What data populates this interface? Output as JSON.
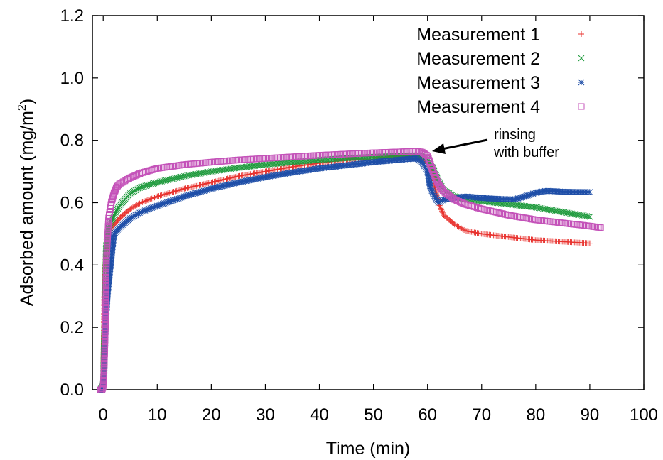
{
  "chart_data": {
    "type": "scatter",
    "xlabel": "Time (min)",
    "ylabel": "Adsorbed amount (mg/m",
    "ylabel_sup": "2",
    "ylabel_close": ")",
    "xlim": [
      -2,
      100
    ],
    "ylim": [
      0.0,
      1.2
    ],
    "x_ticks": [
      "0",
      "10",
      "20",
      "30",
      "40",
      "50",
      "60",
      "70",
      "80",
      "90",
      "100"
    ],
    "y_ticks": [
      "0.0",
      "0.2",
      "0.4",
      "0.6",
      "0.8",
      "1.0",
      "1.2"
    ],
    "grid": false,
    "legend_position": "top-right",
    "annotation": {
      "lines": [
        "rinsing",
        "with buffer"
      ],
      "points_to": [
        60,
        0.77
      ]
    },
    "series": [
      {
        "name": "Measurement 1",
        "marker": "plus",
        "color": "#e8322e",
        "points": [
          [
            -0.5,
            0.0
          ],
          [
            -0.2,
            0.0
          ],
          [
            0.0,
            0.02
          ],
          [
            0.1,
            0.15
          ],
          [
            0.2,
            0.3
          ],
          [
            0.3,
            0.38
          ],
          [
            0.5,
            0.43
          ],
          [
            0.8,
            0.48
          ],
          [
            1,
            0.5
          ],
          [
            1.5,
            0.52
          ],
          [
            2,
            0.53
          ],
          [
            3,
            0.55
          ],
          [
            5,
            0.58
          ],
          [
            7,
            0.6
          ],
          [
            10,
            0.62
          ],
          [
            15,
            0.645
          ],
          [
            20,
            0.665
          ],
          [
            25,
            0.685
          ],
          [
            30,
            0.7
          ],
          [
            35,
            0.715
          ],
          [
            40,
            0.727
          ],
          [
            45,
            0.737
          ],
          [
            50,
            0.745
          ],
          [
            55,
            0.75
          ],
          [
            58,
            0.752
          ],
          [
            59,
            0.745
          ],
          [
            60,
            0.73
          ],
          [
            61,
            0.68
          ],
          [
            62,
            0.6
          ],
          [
            63,
            0.56
          ],
          [
            65,
            0.53
          ],
          [
            67,
            0.51
          ],
          [
            70,
            0.5
          ],
          [
            75,
            0.49
          ],
          [
            80,
            0.48
          ],
          [
            85,
            0.475
          ],
          [
            90,
            0.47
          ]
        ]
      },
      {
        "name": "Measurement 2",
        "marker": "cross",
        "color": "#1e9a3c",
        "points": [
          [
            -0.5,
            0.0
          ],
          [
            -0.2,
            0.01
          ],
          [
            0.0,
            0.02
          ],
          [
            0.1,
            0.12
          ],
          [
            0.3,
            0.25
          ],
          [
            0.5,
            0.45
          ],
          [
            0.8,
            0.5
          ],
          [
            1,
            0.52
          ],
          [
            2,
            0.56
          ],
          [
            3,
            0.59
          ],
          [
            5,
            0.63
          ],
          [
            7,
            0.65
          ],
          [
            10,
            0.665
          ],
          [
            15,
            0.685
          ],
          [
            20,
            0.7
          ],
          [
            25,
            0.712
          ],
          [
            30,
            0.722
          ],
          [
            35,
            0.73
          ],
          [
            40,
            0.737
          ],
          [
            45,
            0.743
          ],
          [
            50,
            0.747
          ],
          [
            55,
            0.75
          ],
          [
            58,
            0.752
          ],
          [
            59,
            0.748
          ],
          [
            60,
            0.74
          ],
          [
            61,
            0.71
          ],
          [
            62,
            0.67
          ],
          [
            63,
            0.64
          ],
          [
            65,
            0.62
          ],
          [
            67,
            0.61
          ],
          [
            70,
            0.605
          ],
          [
            75,
            0.595
          ],
          [
            80,
            0.585
          ],
          [
            85,
            0.57
          ],
          [
            90,
            0.555
          ]
        ]
      },
      {
        "name": "Measurement 3",
        "marker": "star",
        "color": "#1f4fa8",
        "points": [
          [
            -0.5,
            0.0
          ],
          [
            -0.2,
            0.0
          ],
          [
            0.0,
            0.01
          ],
          [
            0.2,
            0.05
          ],
          [
            0.3,
            0.11
          ],
          [
            0.5,
            0.22
          ],
          [
            0.8,
            0.3
          ],
          [
            1,
            0.34
          ],
          [
            1.2,
            0.37
          ],
          [
            1.5,
            0.42
          ],
          [
            2,
            0.5
          ],
          [
            3,
            0.52
          ],
          [
            5,
            0.55
          ],
          [
            7,
            0.57
          ],
          [
            10,
            0.59
          ],
          [
            15,
            0.62
          ],
          [
            20,
            0.645
          ],
          [
            25,
            0.665
          ],
          [
            30,
            0.682
          ],
          [
            35,
            0.697
          ],
          [
            40,
            0.71
          ],
          [
            45,
            0.72
          ],
          [
            50,
            0.73
          ],
          [
            55,
            0.738
          ],
          [
            58,
            0.742
          ],
          [
            59,
            0.73
          ],
          [
            60,
            0.7
          ],
          [
            60.5,
            0.65
          ],
          [
            61,
            0.63
          ],
          [
            62,
            0.6
          ],
          [
            63,
            0.61
          ],
          [
            65,
            0.615
          ],
          [
            67,
            0.62
          ],
          [
            70,
            0.615
          ],
          [
            73,
            0.612
          ],
          [
            76,
            0.61
          ],
          [
            78,
            0.62
          ],
          [
            80,
            0.632
          ],
          [
            82,
            0.638
          ],
          [
            85,
            0.635
          ],
          [
            88,
            0.634
          ],
          [
            90,
            0.634
          ]
        ]
      },
      {
        "name": "Measurement 4",
        "marker": "square",
        "color": "#c453b9",
        "points": [
          [
            -0.5,
            0.0
          ],
          [
            -0.2,
            0.0
          ],
          [
            0.0,
            0.01
          ],
          [
            0.2,
            0.08
          ],
          [
            0.4,
            0.2
          ],
          [
            0.6,
            0.42
          ],
          [
            1,
            0.55
          ],
          [
            1.5,
            0.6
          ],
          [
            2,
            0.63
          ],
          [
            2.5,
            0.65
          ],
          [
            3,
            0.66
          ],
          [
            5,
            0.68
          ],
          [
            7,
            0.695
          ],
          [
            10,
            0.71
          ],
          [
            15,
            0.722
          ],
          [
            20,
            0.73
          ],
          [
            25,
            0.737
          ],
          [
            30,
            0.742
          ],
          [
            35,
            0.747
          ],
          [
            40,
            0.752
          ],
          [
            45,
            0.756
          ],
          [
            50,
            0.76
          ],
          [
            55,
            0.763
          ],
          [
            58,
            0.765
          ],
          [
            59,
            0.762
          ],
          [
            60,
            0.75
          ],
          [
            61,
            0.7
          ],
          [
            62,
            0.66
          ],
          [
            63,
            0.635
          ],
          [
            65,
            0.61
          ],
          [
            67,
            0.595
          ],
          [
            70,
            0.58
          ],
          [
            75,
            0.56
          ],
          [
            80,
            0.545
          ],
          [
            85,
            0.535
          ],
          [
            90,
            0.525
          ],
          [
            92,
            0.52
          ]
        ]
      }
    ]
  }
}
